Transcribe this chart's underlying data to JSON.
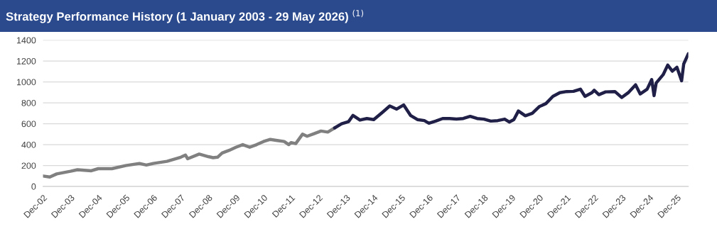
{
  "chart_data": {
    "type": "line",
    "title": "Strategy Performance History (1 January 2003 - 29 May 2026) $^{(1)}$",
    "series": [
      {
        "color": "#808080",
        "x": [
          "2002-12",
          "2003-03",
          "2003-06",
          "2003-12",
          "2004-03",
          "2004-09",
          "2004-12",
          "2005-06",
          "2005-12",
          "2006-03",
          "2006-06",
          "2006-09",
          "2006-12",
          "2007-06",
          "2007-12",
          "2008-02",
          "2008-03",
          "2008-08",
          "2008-12",
          "2009-02",
          "2009-04",
          "2009-06",
          "2009-09",
          "2009-12",
          "2010-03",
          "2010-06",
          "2010-09",
          "2010-12",
          "2011-03",
          "2011-06",
          "2011-09",
          "2011-11",
          "2011-12",
          "2012-02",
          "2012-05",
          "2012-07",
          "2012-10",
          "2013-01",
          "2013-04",
          "2013-07"
        ],
        "values": [
          100,
          90,
          120,
          145,
          160,
          150,
          170,
          170,
          200,
          210,
          220,
          205,
          220,
          240,
          280,
          300,
          265,
          310,
          285,
          275,
          280,
          320,
          345,
          375,
          400,
          375,
          400,
          430,
          450,
          440,
          430,
          400,
          420,
          410,
          500,
          480,
          505,
          530,
          520,
          560
        ]
      },
      {
        "color": "#1f1f47",
        "x": [
          "2013-07",
          "2013-10",
          "2014-01",
          "2014-03",
          "2014-06",
          "2014-09",
          "2014-12",
          "2015-04",
          "2015-07",
          "2015-10",
          "2016-01",
          "2016-04",
          "2016-07",
          "2016-10",
          "2016-12",
          "2017-03",
          "2017-06",
          "2017-09",
          "2017-12",
          "2018-03",
          "2018-06",
          "2018-09",
          "2018-12",
          "2019-03",
          "2019-06",
          "2019-09",
          "2019-11",
          "2020-01",
          "2020-03",
          "2020-06",
          "2020-09",
          "2020-12",
          "2021-03",
          "2021-06",
          "2021-09",
          "2021-12",
          "2022-03",
          "2022-06",
          "2022-08",
          "2022-11",
          "2022-12",
          "2023-02",
          "2023-05",
          "2023-09",
          "2023-12",
          "2024-03",
          "2024-06",
          "2024-08",
          "2024-11",
          "2025-01",
          "2025-02",
          "2025-03",
          "2025-06",
          "2025-08",
          "2025-10",
          "2025-12",
          "2026-02",
          "2026-03",
          "2026-05"
        ],
        "values": [
          560,
          600,
          620,
          680,
          635,
          650,
          640,
          713,
          770,
          740,
          780,
          680,
          640,
          630,
          605,
          625,
          650,
          650,
          645,
          650,
          671,
          650,
          644,
          625,
          630,
          644,
          616,
          640,
          722,
          676,
          700,
          763,
          793,
          862,
          897,
          908,
          910,
          931,
          862,
          897,
          920,
          878,
          905,
          908,
          851,
          900,
          972,
          885,
          930,
          1023,
          869,
          990,
          1069,
          1161,
          1103,
          1140,
          1011,
          1172,
          1269
        ]
      }
    ],
    "xlim": [
      "2002-12",
      "2026-05"
    ],
    "xticks": [
      {
        "value": "2002-12",
        "label": "Dec-02"
      },
      {
        "value": "2003-12",
        "label": "Dec-03"
      },
      {
        "value": "2004-12",
        "label": "Dec-04"
      },
      {
        "value": "2005-12",
        "label": "Dec-05"
      },
      {
        "value": "2006-12",
        "label": "Dec-06"
      },
      {
        "value": "2007-12",
        "label": "Dec-07"
      },
      {
        "value": "2008-12",
        "label": "Dec-08"
      },
      {
        "value": "2009-12",
        "label": "Dec-09"
      },
      {
        "value": "2010-12",
        "label": "Dec-10"
      },
      {
        "value": "2011-12",
        "label": "Dec-11"
      },
      {
        "value": "2012-12",
        "label": "Dec-12"
      },
      {
        "value": "2013-12",
        "label": "Dec-13"
      },
      {
        "value": "2014-12",
        "label": "Dec-14"
      },
      {
        "value": "2015-12",
        "label": "Dec-15"
      },
      {
        "value": "2016-12",
        "label": "Dec-16"
      },
      {
        "value": "2017-12",
        "label": "Dec-17"
      },
      {
        "value": "2018-12",
        "label": "Dec-18"
      },
      {
        "value": "2019-12",
        "label": "Dec-19"
      },
      {
        "value": "2020-12",
        "label": "Dec-20"
      },
      {
        "value": "2021-12",
        "label": "Dec-21"
      },
      {
        "value": "2022-12",
        "label": "Dec-22"
      },
      {
        "value": "2023-12",
        "label": "Dec-23"
      },
      {
        "value": "2024-12",
        "label": "Dec-24"
      },
      {
        "value": "2025-12",
        "label": "Dec-25"
      }
    ],
    "ylim": [
      0,
      1400
    ],
    "yticks": [
      0,
      200,
      400,
      600,
      800,
      1000,
      1200,
      1400
    ],
    "grid": "y",
    "line_style": "solid"
  }
}
